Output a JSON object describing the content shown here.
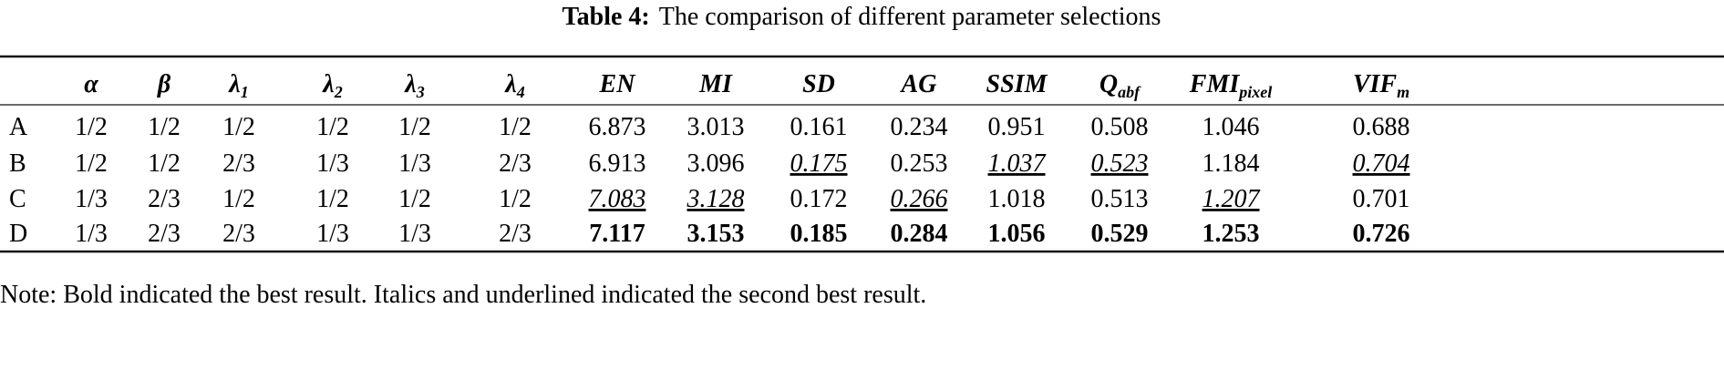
{
  "caption": {
    "label": "Table 4:",
    "text": "The comparison of different parameter selections"
  },
  "table": {
    "header": [
      {
        "base": "α"
      },
      {
        "base": "β"
      },
      {
        "base": "λ",
        "sub": "1"
      },
      {
        "base": "λ",
        "sub": "2"
      },
      {
        "base": "λ",
        "sub": "3"
      },
      {
        "base": "λ",
        "sub": "4"
      },
      {
        "base": "EN"
      },
      {
        "base": "MI"
      },
      {
        "base": "SD"
      },
      {
        "base": "AG"
      },
      {
        "base": "SSIM"
      },
      {
        "base": "Q",
        "sub": "abf"
      },
      {
        "base": "FMI",
        "sub": "pixel"
      },
      {
        "base": "VIF",
        "sub": "m"
      }
    ],
    "rows": [
      {
        "label": "A",
        "cells": [
          "1/2",
          "1/2",
          "1/2",
          "1/2",
          "1/2",
          "1/2",
          "6.873",
          "3.013",
          "0.161",
          "0.234",
          "0.951",
          "0.508",
          "1.046",
          "0.688"
        ],
        "styles": [
          "plain",
          "plain",
          "plain",
          "plain",
          "plain",
          "plain",
          "plain",
          "plain",
          "plain",
          "plain",
          "plain",
          "plain",
          "plain",
          "plain"
        ]
      },
      {
        "label": "B",
        "cells": [
          "1/2",
          "1/2",
          "2/3",
          "1/3",
          "1/3",
          "2/3",
          "6.913",
          "3.096",
          "0.175",
          "0.253",
          "1.037",
          "0.523",
          "1.184",
          "0.704"
        ],
        "styles": [
          "plain",
          "plain",
          "plain",
          "plain",
          "plain",
          "plain",
          "plain",
          "plain",
          "second",
          "plain",
          "second",
          "second",
          "plain",
          "second"
        ]
      },
      {
        "label": "C",
        "cells": [
          "1/3",
          "2/3",
          "1/2",
          "1/2",
          "1/2",
          "1/2",
          "7.083",
          "3.128",
          "0.172",
          "0.266",
          "1.018",
          "0.513",
          "1.207",
          "0.701"
        ],
        "styles": [
          "plain",
          "plain",
          "plain",
          "plain",
          "plain",
          "plain",
          "second",
          "second",
          "plain",
          "second",
          "plain",
          "plain",
          "second",
          "plain"
        ]
      },
      {
        "label": "D",
        "cells": [
          "1/3",
          "2/3",
          "2/3",
          "1/3",
          "1/3",
          "2/3",
          "7.117",
          "3.153",
          "0.185",
          "0.284",
          "1.056",
          "0.529",
          "1.253",
          "0.726"
        ],
        "styles": [
          "plain",
          "plain",
          "plain",
          "plain",
          "plain",
          "plain",
          "bold",
          "bold",
          "bold",
          "bold",
          "bold",
          "bold",
          "bold",
          "bold"
        ]
      }
    ]
  },
  "note": "Note: Bold indicated the best result. Italics and underlined indicated the second best result."
}
